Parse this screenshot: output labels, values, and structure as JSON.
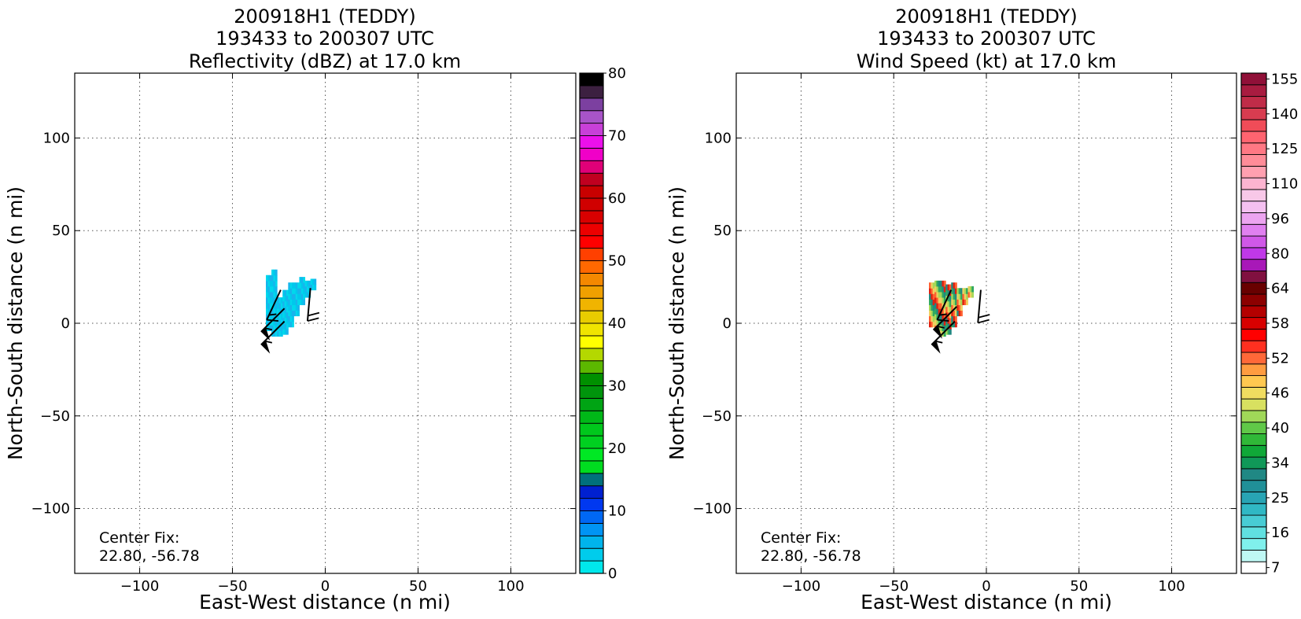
{
  "chart_data": [
    {
      "type": "heatmap",
      "title_lines": [
        "200918H1 (TEDDY)",
        "193433 to 200307 UTC",
        "Reflectivity (dBZ) at 17.0 km"
      ],
      "xlabel": "East-West distance (n mi)",
      "ylabel": "North-South distance (n mi)",
      "xlim": [
        -135,
        135
      ],
      "ylim": [
        -135,
        135
      ],
      "xticks": [
        -100,
        -50,
        0,
        50,
        100
      ],
      "yticks": [
        -100,
        -50,
        0,
        50,
        100
      ],
      "x_tick_labels": [
        "−100",
        "−50",
        "0",
        "50",
        "100"
      ],
      "y_tick_labels": [
        "−100",
        "−50",
        "0",
        "50",
        "100"
      ],
      "grid": true,
      "annotation": [
        "Center Fix:",
        "22.80, -56.78"
      ],
      "colorbar": {
        "min": 0,
        "max": 80,
        "tick_values": [
          0,
          10,
          20,
          30,
          40,
          50,
          60,
          70,
          80
        ],
        "tick_labels": [
          "0",
          "10",
          "20",
          "30",
          "40",
          "50",
          "60",
          "70",
          "80"
        ],
        "colors": [
          "#00e8ec",
          "#00ccec",
          "#00b4ec",
          "#0094f4",
          "#0068f4",
          "#0038f0",
          "#0020d0",
          "#00707c",
          "#00dc20",
          "#00e824",
          "#00d020",
          "#00c81c",
          "#00b818",
          "#00a414",
          "#00940c",
          "#009000",
          "#5cb800",
          "#b4d800",
          "#ffff00",
          "#f0e400",
          "#e8cc00",
          "#f0b400",
          "#f0a000",
          "#f48800",
          "#ff6800",
          "#ff4000",
          "#ff0000",
          "#ec0000",
          "#d80000",
          "#d00000",
          "#c80000",
          "#c00020",
          "#e00078",
          "#f000c8",
          "#ec10ec",
          "#c840d8",
          "#a854c8",
          "#7c40a0",
          "#3c2040",
          "#000000"
        ]
      },
      "echo_colors": [
        "#00d8ec",
        "#00c8ec",
        "#18b4ec"
      ],
      "echo_region": {
        "columns": [
          {
            "x": -31,
            "y0": -4,
            "y1": 26
          },
          {
            "x": -28,
            "y0": -7,
            "y1": 27
          },
          {
            "x": -25,
            "y0": -7,
            "y1": 12
          },
          {
            "x": -22,
            "y0": -6,
            "y1": 18
          },
          {
            "x": -19,
            "y0": -2,
            "y1": 20
          },
          {
            "x": -16,
            "y0": 4,
            "y1": 22
          },
          {
            "x": -13,
            "y0": 10,
            "y1": 23
          },
          {
            "x": -10,
            "y0": 14,
            "y1": 23
          },
          {
            "x": -7,
            "y0": 18,
            "y1": 22
          }
        ]
      },
      "wind_barbs": [
        {
          "x": -24,
          "y": 18,
          "dir_deg": 245,
          "speed_kt": 15
        },
        {
          "x": -8,
          "y": 19,
          "dir_deg": 265,
          "speed_kt": 20
        },
        {
          "x": -22,
          "y": 8,
          "dir_deg": 225,
          "speed_kt": 55
        },
        {
          "x": -22,
          "y": 1,
          "dir_deg": 225,
          "speed_kt": 55
        }
      ]
    },
    {
      "type": "heatmap",
      "title_lines": [
        "200918H1 (TEDDY)",
        "193433 to 200307 UTC",
        "Wind Speed (kt) at 17.0 km"
      ],
      "xlabel": "East-West distance (n mi)",
      "ylabel": "North-South distance (n mi)",
      "xlim": [
        -135,
        135
      ],
      "ylim": [
        -135,
        135
      ],
      "xticks": [
        -100,
        -50,
        0,
        50,
        100
      ],
      "yticks": [
        -100,
        -50,
        0,
        50,
        100
      ],
      "x_tick_labels": [
        "−100",
        "−50",
        "0",
        "50",
        "100"
      ],
      "y_tick_labels": [
        "−100",
        "−50",
        "0",
        "50",
        "100"
      ],
      "grid": true,
      "annotation": [
        "Center Fix:",
        "22.80, -56.78"
      ],
      "colorbar": {
        "tick_labels": [
          "7",
          "16",
          "25",
          "34",
          "40",
          "46",
          "52",
          "58",
          "64",
          "80",
          "96",
          "110",
          "125",
          "140",
          "155"
        ],
        "colors": [
          "#ffffff",
          "#bff8f4",
          "#80f0ec",
          "#60e0e0",
          "#48ccd4",
          "#30b8c4",
          "#28a4b4",
          "#209098",
          "#208884",
          "#109858",
          "#10a838",
          "#30b838",
          "#60c848",
          "#a0d858",
          "#d8e060",
          "#f0dc60",
          "#ffc850",
          "#ff9c40",
          "#ff6838",
          "#ff3020",
          "#ff0000",
          "#d80000",
          "#b40000",
          "#8c0000",
          "#680000",
          "#801040",
          "#a818b8",
          "#c038e8",
          "#d058e8",
          "#e080f0",
          "#eca4f0",
          "#f4c0f0",
          "#f8c8e8",
          "#fcb4d0",
          "#ffa0b0",
          "#ff8c98",
          "#ff7884",
          "#ff6470",
          "#f04c58",
          "#d83c50",
          "#c02c48",
          "#a81c40",
          "#901038"
        ]
      },
      "echo_colors": [
        "#e02010",
        "#ff6030",
        "#f0d060",
        "#a8d858",
        "#30a860",
        "#208880"
      ],
      "echo_region": {
        "columns": [
          {
            "x": -30,
            "y0": -2,
            "y1": 20
          },
          {
            "x": -27,
            "y0": -4,
            "y1": 22
          },
          {
            "x": -24,
            "y0": -7,
            "y1": 22
          },
          {
            "x": -21,
            "y0": -6,
            "y1": 20
          },
          {
            "x": -18,
            "y0": -2,
            "y1": 20
          },
          {
            "x": -15,
            "y0": 4,
            "y1": 19
          },
          {
            "x": -12,
            "y0": 10,
            "y1": 19
          },
          {
            "x": -9,
            "y0": 14,
            "y1": 18
          }
        ]
      },
      "wind_barbs": [
        {
          "x": -19,
          "y": 18,
          "dir_deg": 245,
          "speed_kt": 15
        },
        {
          "x": -3,
          "y": 18,
          "dir_deg": 265,
          "speed_kt": 20
        },
        {
          "x": -16,
          "y": 9,
          "dir_deg": 225,
          "speed_kt": 55
        },
        {
          "x": -17,
          "y": 1,
          "dir_deg": 225,
          "speed_kt": 55
        }
      ]
    }
  ]
}
